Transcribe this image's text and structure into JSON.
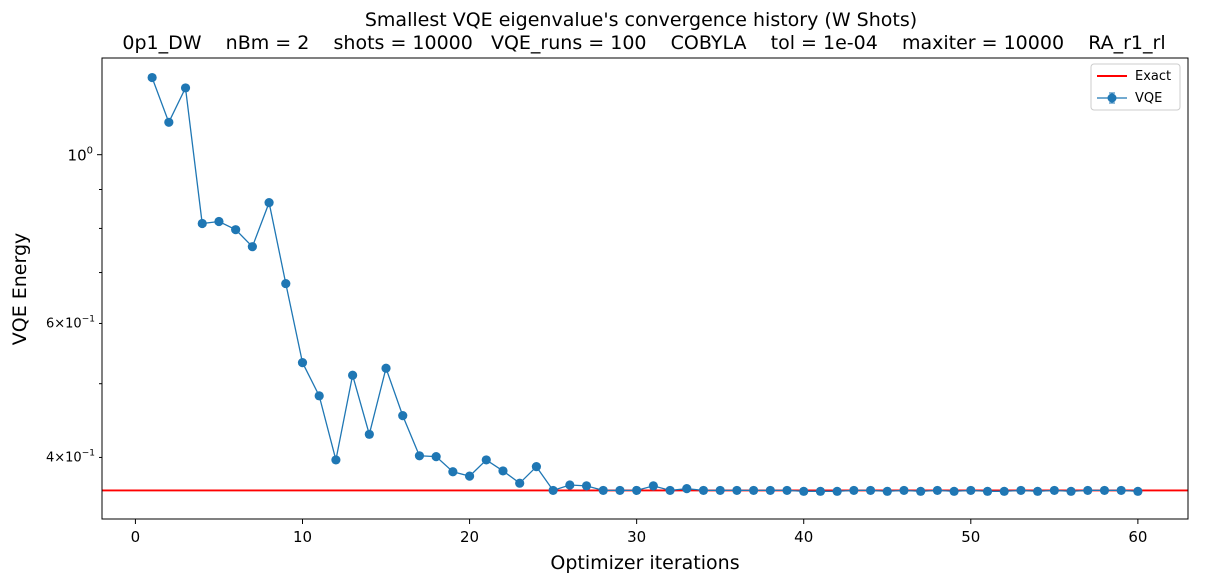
{
  "chart_data": {
    "type": "line",
    "title": "Smallest VQE eigenvalue's convergence history (W Shots)",
    "subtitle": "0p1_DW    nBm = 2    shots = 10000   VQE_runs = 100    COBYLA    tol = 1e-04    maxiter = 10000    RA_r1_rl",
    "xlabel": "Optimizer iterations",
    "ylabel": "VQE Energy",
    "xlim": [
      -2,
      63
    ],
    "ylim": [
      0.332,
      1.34
    ],
    "yscale": "log",
    "grid": false,
    "legend_position": "top-right",
    "x_ticks": [
      0,
      10,
      20,
      30,
      40,
      50,
      60
    ],
    "x_tick_labels": [
      "0",
      "10",
      "20",
      "30",
      "40",
      "50",
      "60"
    ],
    "y_major_ticks": [
      1.0
    ],
    "y_major_tick_labels": [
      "10^0"
    ],
    "y_labeled_minor_ticks": [
      0.6,
      0.4
    ],
    "y_labeled_minor_tick_labels": [
      "6×10^-1",
      "4×10^-1"
    ],
    "y_unlabeled_minor_ticks": [
      0.5,
      0.7,
      0.8,
      0.9
    ],
    "exact": {
      "name": "Exact",
      "value": 0.362,
      "color": "#ff0000"
    },
    "series": [
      {
        "name": "VQE",
        "color": "#1f77b4",
        "marker": "circle",
        "x": [
          1,
          2,
          3,
          4,
          5,
          6,
          7,
          8,
          9,
          10,
          11,
          12,
          13,
          14,
          15,
          16,
          17,
          18,
          19,
          20,
          21,
          22,
          23,
          24,
          25,
          26,
          27,
          28,
          29,
          30,
          31,
          32,
          33,
          34,
          35,
          36,
          37,
          38,
          39,
          40,
          41,
          42,
          43,
          44,
          45,
          46,
          47,
          48,
          49,
          50,
          51,
          52,
          53,
          54,
          55,
          56,
          57,
          58,
          59,
          60
        ],
        "values": [
          1.263,
          1.103,
          1.224,
          0.812,
          0.817,
          0.797,
          0.757,
          0.865,
          0.677,
          0.533,
          0.482,
          0.397,
          0.513,
          0.429,
          0.524,
          0.454,
          0.402,
          0.401,
          0.383,
          0.378,
          0.397,
          0.384,
          0.37,
          0.389,
          0.362,
          0.368,
          0.367,
          0.362,
          0.362,
          0.362,
          0.367,
          0.362,
          0.364,
          0.362,
          0.362,
          0.362,
          0.362,
          0.362,
          0.362,
          0.361,
          0.361,
          0.361,
          0.362,
          0.362,
          0.361,
          0.362,
          0.361,
          0.362,
          0.361,
          0.362,
          0.361,
          0.361,
          0.362,
          0.361,
          0.362,
          0.361,
          0.362,
          0.362,
          0.362,
          0.361
        ]
      }
    ]
  }
}
